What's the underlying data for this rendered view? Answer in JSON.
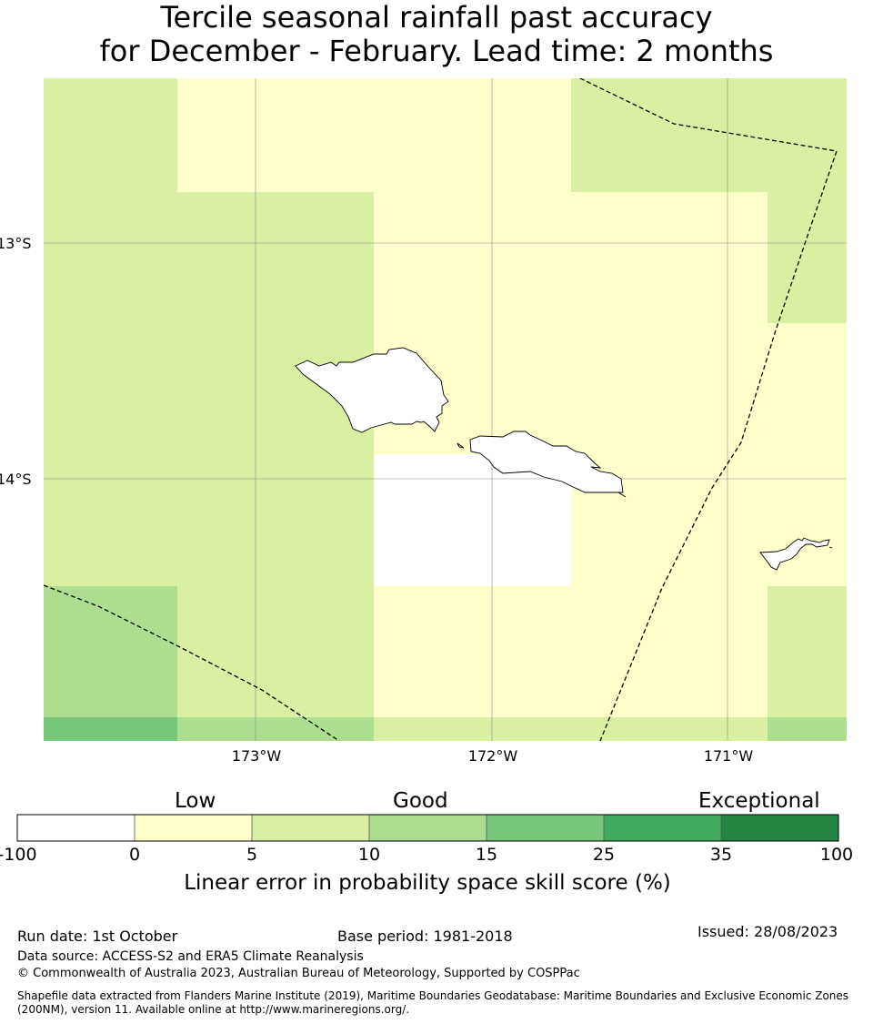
{
  "title": {
    "line1": "Tercile seasonal rainfall past accuracy",
    "line2": "for December - February. Lead time: 2 months"
  },
  "map": {
    "lat_labels": [
      "13°S",
      "14°S"
    ],
    "lon_labels": [
      "173°W",
      "172°W",
      "171°W"
    ],
    "grid_colors": {
      "white": "#ffffff",
      "c0_5": "#ffffcc",
      "c5_10": "#d9f0a3",
      "c10_15": "#addd8e",
      "c15_25": "#78c679"
    }
  },
  "colorbar": {
    "category_labels": [
      "Low",
      "Good",
      "Exceptional"
    ],
    "tick_labels": [
      "-100",
      "0",
      "5",
      "10",
      "15",
      "25",
      "35",
      "100"
    ],
    "colors": [
      "#ffffff",
      "#ffffcc",
      "#d9f0a3",
      "#addd8e",
      "#78c679",
      "#41ab5d",
      "#238443"
    ],
    "title": "Linear error in probability space skill score (%)"
  },
  "footer": {
    "run_date": "Run date: 1st October",
    "base_period": "Base period: 1981-2018",
    "issued": "Issued: 28/08/2023",
    "data_source": "Data source: ACCESS-S2 and ERA5 Climate Reanalysis",
    "copyright": "© Commonwealth of Australia 2023, Australian Bureau of Meteorology, Supported by COSPPac",
    "shapefile": "Shapefile data extracted from Flanders Marine Institute (2019), Maritime Boundaries Geodatabase: Maritime Boundaries and Exclusive Economic Zones (200NM), version 11. Available online at http://www.marineregions.org/."
  }
}
